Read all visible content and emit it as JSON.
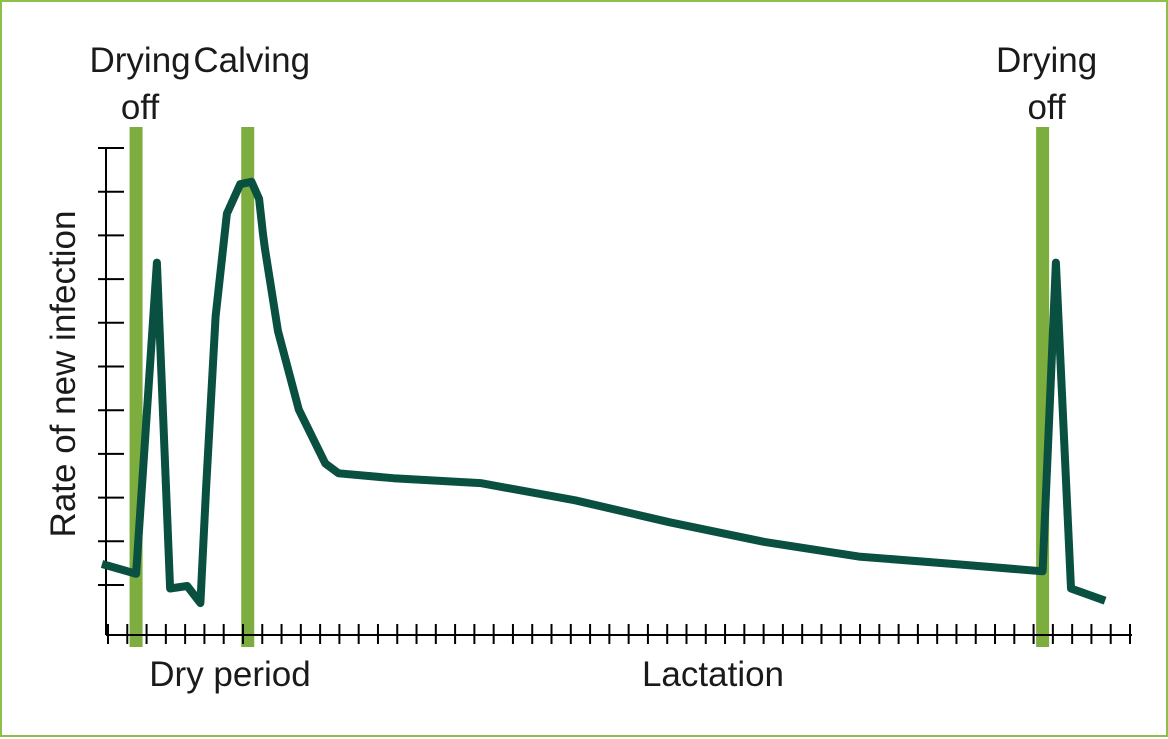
{
  "chart_data": {
    "type": "line",
    "title": "",
    "ylabel": "Rate of new infection",
    "xlabel": "",
    "x_regions": [
      {
        "label": "Dry period",
        "from": 0,
        "to": 6
      },
      {
        "label": "Lactation",
        "from": 6,
        "to": 54
      }
    ],
    "markers": [
      {
        "name": "drying-off-1",
        "x": 1.8,
        "label_lines": [
          "Drying",
          "off"
        ]
      },
      {
        "name": "calving",
        "x": 7.7,
        "label_lines": [
          "Calving"
        ]
      },
      {
        "name": "drying-off-2",
        "x": 49.7,
        "label_lines": [
          "Drying",
          "off"
        ]
      }
    ],
    "y_ticks": 11,
    "x_ticks": 54,
    "xlim": [
      0,
      54
    ],
    "ylim": [
      0,
      10
    ],
    "grid": false,
    "series": [
      {
        "x": [
          0,
          1.8,
          2.9,
          3.6,
          4.5,
          5.2,
          5.5,
          6.0,
          6.6,
          7.3,
          7.9,
          8.3,
          8.5,
          8.6,
          9.3,
          10.4,
          11.8,
          12.5,
          15.4,
          20.0,
          25.0,
          30.0,
          35.0,
          40.0,
          45.0,
          49.7,
          50.4,
          51.2,
          53.0
        ],
        "y": [
          1.45,
          1.25,
          7.6,
          0.95,
          1.0,
          0.65,
          3.0,
          6.5,
          8.6,
          9.2,
          9.25,
          8.9,
          8.2,
          7.9,
          6.2,
          4.6,
          3.5,
          3.3,
          3.2,
          3.1,
          2.75,
          2.3,
          1.9,
          1.6,
          1.45,
          1.3,
          7.6,
          0.95,
          0.7
        ]
      }
    ],
    "colors": {
      "curve": "#0a5040",
      "marker": "#7cad3e",
      "frame": "#8dbf4a",
      "axis": "#000000"
    }
  }
}
